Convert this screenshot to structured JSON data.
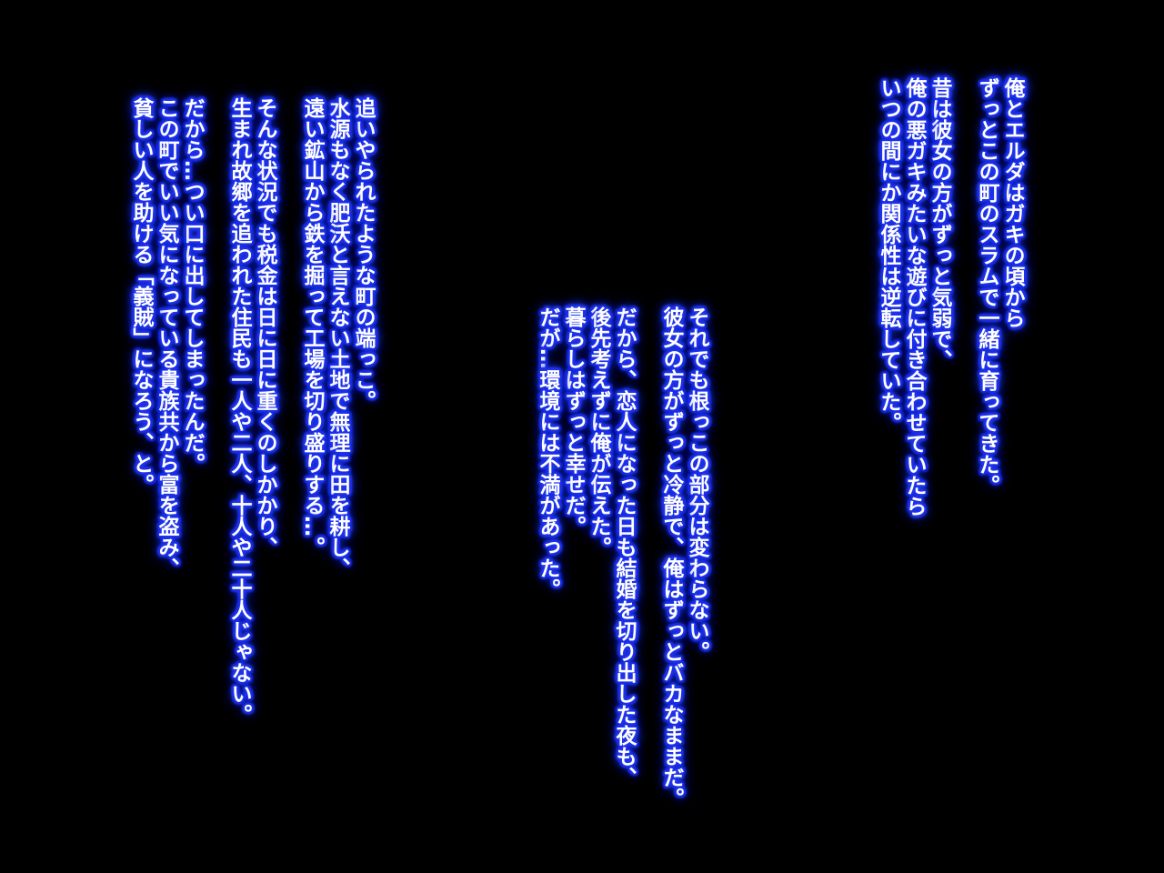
{
  "theme": {
    "background": "#000000",
    "text_color": "#ffffff",
    "glow_color": "#2236ea"
  },
  "story": {
    "writing": "vertical",
    "blocks": [
      {
        "id": "childhood",
        "paragraphs": [
          [
            "俺とエルダはガキの頃から",
            "ずっとこの町のスラムで一緒に育ってきた。"
          ],
          [
            "昔は彼女の方がずっと気弱で、",
            "俺の悪ガキみたいな遊びに付き合わせていたら",
            "いつの間にか関係性は逆転していた。"
          ]
        ]
      },
      {
        "id": "relationship",
        "paragraphs": [
          [
            "それでも根っこの部分は変わらない。",
            "彼女の方がずっと冷静で、俺はずっとバカなままだ。"
          ],
          [
            "だから、恋人になった日も結婚を切り出した夜も、",
            "後先考えずに俺が伝えた。",
            "暮らしはずっと幸せだ。",
            "だが…環境には不満があった。"
          ]
        ]
      },
      {
        "id": "town",
        "paragraphs": [
          [
            "追いやられたような町の端っこ。",
            "水源もなく肥沃と言えない土地で無理に田を耕し、",
            "遠い鉱山から鉄を掘って工場を切り盛りする…。"
          ],
          [
            "そんな状況でも税金は日に日に重くのしかかり、",
            "生まれ故郷を追われた住民も一人や二人、十人や二十人じゃない。"
          ],
          [
            "だから…つい口に出してしまったんだ。",
            "この町でいい気になっている貴族共から富を盗み、",
            "貧しい人を助ける「義賊」になろう、と。"
          ]
        ]
      }
    ]
  }
}
